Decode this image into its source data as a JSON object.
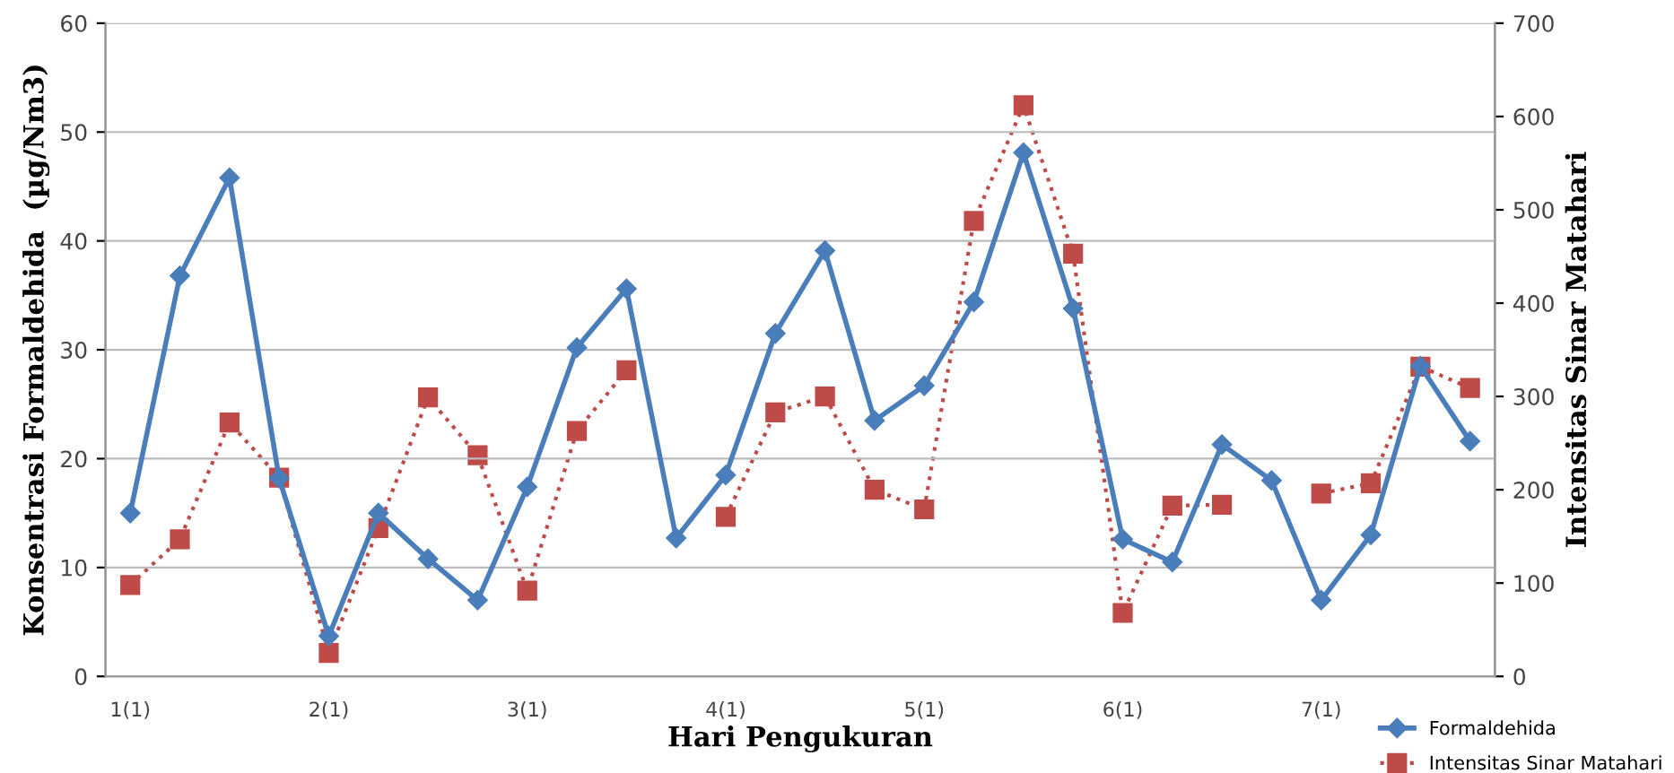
{
  "chart_data": {
    "type": "line",
    "xlabel": "Hari Pengukuran",
    "ylabel": "Konsentrasi Formaldehida  (µg/Nm3)",
    "y2label": "Intensitas Sinar Matahari",
    "categories": [
      "1(1)",
      null,
      null,
      null,
      "2(1)",
      null,
      null,
      null,
      "3(1)",
      null,
      null,
      null,
      "4(1)",
      null,
      null,
      null,
      "5(1)",
      null,
      null,
      null,
      "6(1)",
      null,
      null,
      null,
      "7(1)",
      null,
      null,
      null
    ],
    "ylim": [
      0,
      60
    ],
    "yticks": [
      0,
      10,
      20,
      30,
      40,
      50,
      60
    ],
    "y2lim": [
      0,
      700
    ],
    "y2ticks": [
      0,
      100,
      200,
      300,
      400,
      500,
      600,
      700
    ],
    "grid": "y",
    "legend": "bottom right",
    "series": [
      {
        "name": "Formaldehida",
        "color": "#4a7ebb",
        "marker": "diamond",
        "line_style": "solid",
        "values": [
          15,
          36.8,
          45.8,
          18.2,
          3.7,
          15,
          10.8,
          7,
          17.4,
          30.2,
          35.6,
          12.7,
          18.5,
          31.5,
          39.1,
          23.5,
          26.7,
          34.4,
          48.1,
          33.8,
          12.6,
          10.5,
          21.3,
          18,
          7,
          13,
          28.5,
          21.6
        ]
      },
      {
        "name": "Intensitas Sinar Matahari",
        "color": "#be4b48",
        "marker": "square",
        "line_style": "dotted",
        "axis": "y2",
        "values": [
          98,
          147,
          272,
          213,
          25,
          159,
          299,
          237,
          92,
          263,
          328,
          null,
          171,
          283,
          300,
          200,
          179,
          488,
          612,
          453,
          68,
          183,
          184,
          null,
          196,
          207,
          332,
          309
        ]
      }
    ]
  }
}
